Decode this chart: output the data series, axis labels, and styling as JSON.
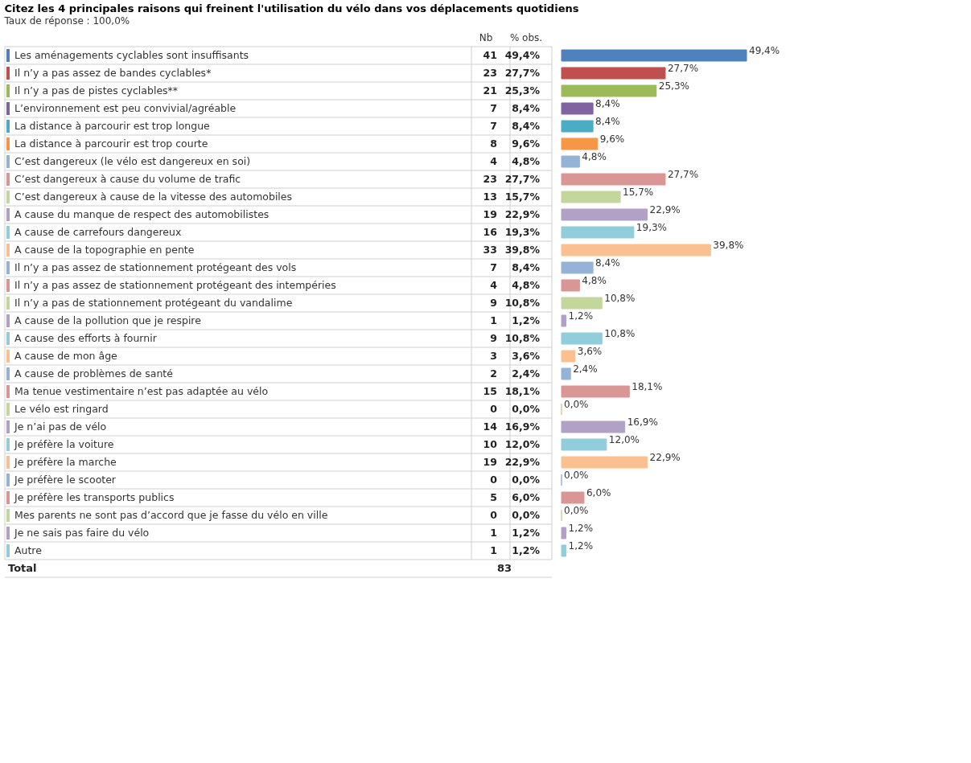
{
  "chart_data": [
    {
      "type": "other",
      "data_labels": true,
      "title": "Citez les 4 principales raisons qui freinent l'utilisation du vélo dans vos déplacements quotidiens",
      "subtitle": "Taux de réponse : 100,0%",
      "xlabel": "Nb",
      "categories": [
        "Les aménagements cyclables sont insuffisants",
        "Il n’y a pas assez de bandes cyclables*",
        "Il n’y a pas de pistes cyclables**",
        "L’environnement est peu convivial/agréable",
        "La distance à parcourir est trop longue",
        "La distance à parcourir est trop courte",
        "C’est dangereux (le vélo est dangereux en soi)",
        "C’est  dangereux à cause du volume de trafic",
        "C’est  dangereux à cause de la vitesse des automobiles",
        "A cause du manque de respect des automobilistes",
        "A cause de carrefours dangereux",
        "A cause de la topographie en pente",
        "Il n’y a pas assez de stationnement protégeant des vols",
        "Il n’y a pas assez de stationnement protégeant des intempéries",
        "Il n’y a pas de stationnement protégeant du vandalime",
        "A cause de la pollution que je respire",
        "A cause des efforts à fournir",
        "A cause de mon âge",
        "A cause de problèmes de santé",
        "Ma tenue vestimentaire n’est pas adaptée au vélo",
        "Le vélo est ringard",
        "Je n’ai pas de vélo",
        "Je préfère la voiture",
        "Je préfère la marche",
        "Je préfère le scooter",
        "Je préfère les transports publics",
        "Mes parents ne sont pas d’accord que je fasse du vélo en ville",
        "Je ne sais pas faire du vélo",
        "Autre"
      ],
      "values": [
        41,
        23,
        21,
        7,
        7,
        8,
        4,
        23,
        13,
        19,
        16,
        33,
        7,
        4,
        9,
        1,
        9,
        3,
        2,
        15,
        0,
        14,
        10,
        19,
        0,
        5,
        0,
        1,
        1
      ],
      "annotations": [
        "Total",
        "83"
      ]
    },
    {
      "type": "bar",
      "orientation": "horizontal",
      "xlabel": "% obs.",
      "categories": [
        null,
        null,
        null,
        null,
        null,
        null,
        null,
        null,
        null,
        null,
        null,
        null,
        null,
        null,
        null,
        null,
        null,
        null,
        null,
        null,
        null,
        null,
        null,
        null,
        null,
        null,
        null,
        null,
        null
      ],
      "values": [
        49.4,
        27.7,
        25.3,
        8.4,
        8.4,
        9.6,
        4.8,
        27.7,
        15.7,
        22.9,
        19.3,
        39.8,
        8.4,
        4.8,
        10.8,
        1.2,
        10.8,
        3.6,
        2.4,
        18.1,
        0.0,
        16.9,
        12.0,
        22.9,
        0.0,
        6.0,
        0.0,
        1.2,
        1.2
      ],
      "value_labels": [
        "49,4%",
        "27,7%",
        "25,3%",
        "8,4%",
        "8,4%",
        "9,6%",
        "4,8%",
        "27,7%",
        "15,7%",
        "22,9%",
        "19,3%",
        "39,8%",
        "8,4%",
        "4,8%",
        "10,8%",
        "1,2%",
        "10,8%",
        "3,6%",
        "2,4%",
        "18,1%",
        "0,0%",
        "16,9%",
        "12,0%",
        "22,9%",
        "0,0%",
        "6,0%",
        "0,0%",
        "1,2%",
        "1,2%"
      ],
      "colors": [
        "#4f81bd",
        "#c0504d",
        "#9bbb59",
        "#8064a2",
        "#4bacc6",
        "#f79646",
        "#95b3d7",
        "#d99694",
        "#c3d69b",
        "#b2a1c7",
        "#92cddc",
        "#fac08f",
        "#95b3d7",
        "#d99694",
        "#c3d69b",
        "#b2a1c7",
        "#92cddc",
        "#fac08f",
        "#95b3d7",
        "#d99694",
        "#c3d69b",
        "#b2a1c7",
        "#92cddc",
        "#fac08f",
        "#95b3d7",
        "#d99694",
        "#c3d69b",
        "#b2a1c7",
        "#92cddc"
      ]
    }
  ]
}
